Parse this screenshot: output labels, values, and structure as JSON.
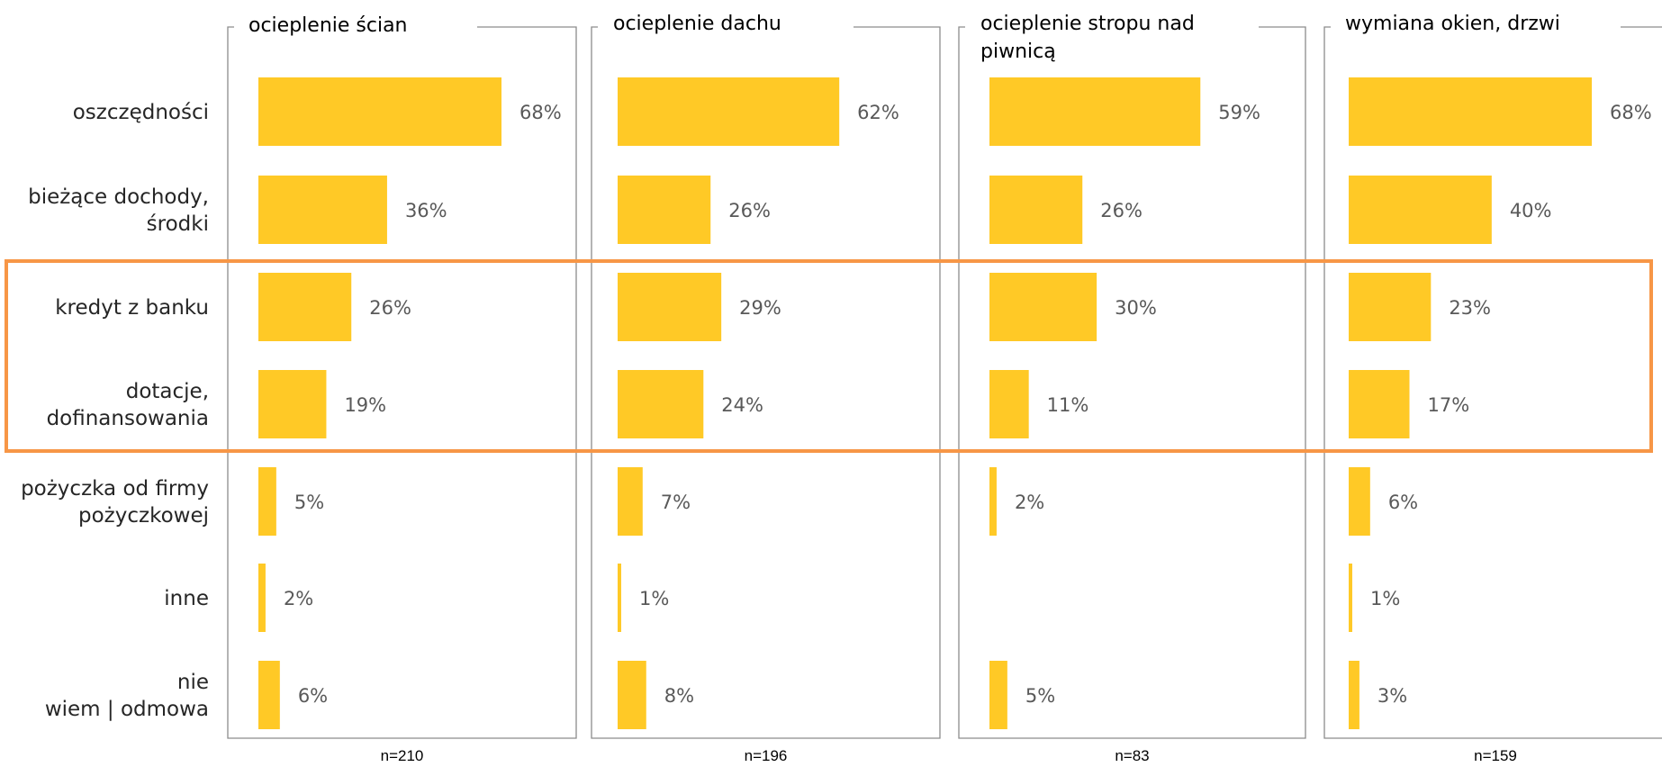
{
  "colors": {
    "bar": "#FFC926",
    "highlight": "#F79646",
    "frame": "#8c8c8c"
  },
  "chart_data": {
    "type": "bar",
    "orientation": "horizontal",
    "unit": "%",
    "categories": [
      "oszczędności",
      "bieżące dochody, środki",
      "kredyt z banku",
      "dotacje, dofinansowania",
      "pożyczka od firmy pożyczkowej",
      "inne",
      "nie wiem | odmowa"
    ],
    "category_lines": [
      [
        "oszczędności"
      ],
      [
        "bieżące dochody,",
        "środki"
      ],
      [
        "kredyt z banku"
      ],
      [
        "dotacje,",
        "dofinansowania"
      ],
      [
        "pożyczka od firmy",
        "pożyczkowej"
      ],
      [
        "inne"
      ],
      [
        "nie",
        "wiem | odmowa"
      ]
    ],
    "highlighted_categories": [
      "kredyt z banku",
      "dotacje, dofinansowania"
    ],
    "xlim": [
      0,
      100
    ],
    "series": [
      {
        "name": "ocieplenie ścian",
        "title_lines": [
          "ocieplenie ścian"
        ],
        "n": "n=210",
        "values": [
          68,
          36,
          26,
          19,
          5,
          2,
          6
        ],
        "labels": [
          "68%",
          "36%",
          "26%",
          "19%",
          "5%",
          "2%",
          "6%"
        ]
      },
      {
        "name": "ocieplenie dachu",
        "title_lines": [
          "ocieplenie dachu"
        ],
        "n": "n=196",
        "values": [
          62,
          26,
          29,
          24,
          7,
          1,
          8
        ],
        "labels": [
          "62%",
          "26%",
          "29%",
          "24%",
          "7%",
          "1%",
          "8%"
        ]
      },
      {
        "name": "ocieplenie stropu nad piwnicą",
        "title_lines": [
          "ocieplenie stropu nad",
          "piwnicą"
        ],
        "n": "n=83",
        "values": [
          59,
          26,
          30,
          11,
          2,
          null,
          5
        ],
        "labels": [
          "59%",
          "26%",
          "30%",
          "11%",
          "2%",
          null,
          "5%"
        ]
      },
      {
        "name": "wymiana okien, drzwi",
        "title_lines": [
          "wymiana okien, drzwi"
        ],
        "n": "n=159",
        "values": [
          68,
          40,
          23,
          17,
          6,
          1,
          3
        ],
        "labels": [
          "68%",
          "40%",
          "23%",
          "17%",
          "6%",
          "1%",
          "3%"
        ]
      }
    ]
  }
}
